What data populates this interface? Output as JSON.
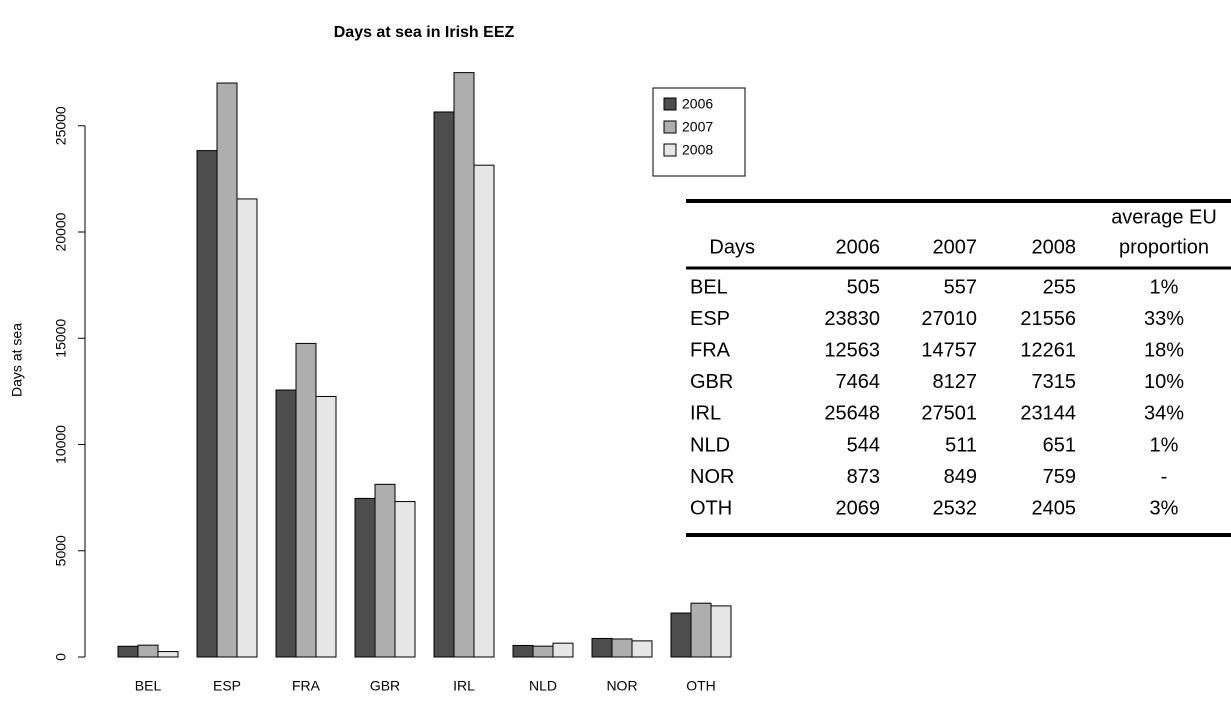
{
  "chart_data": {
    "type": "bar",
    "title": "Days at sea in Irish EEZ",
    "y_label": "Days at sea",
    "categories": [
      "BEL",
      "ESP",
      "FRA",
      "GBR",
      "IRL",
      "NLD",
      "NOR",
      "OTH"
    ],
    "series": [
      {
        "name": "2006",
        "color": "#4d4d4d",
        "values": [
          505,
          23830,
          12563,
          7464,
          25648,
          544,
          873,
          2069
        ]
      },
      {
        "name": "2007",
        "color": "#aeaeae",
        "values": [
          557,
          27010,
          14757,
          8127,
          27501,
          511,
          849,
          2532
        ]
      },
      {
        "name": "2008",
        "color": "#e6e6e6",
        "values": [
          255,
          21556,
          12261,
          7315,
          23144,
          651,
          759,
          2405
        ]
      }
    ],
    "ylim": [
      0,
      28000
    ],
    "yticks": [
      0,
      5000,
      10000,
      15000,
      20000,
      25000
    ],
    "grid": false,
    "legend": "top-right"
  },
  "table": {
    "row_header": "Days",
    "proportion_header": [
      "average EU",
      "proportion"
    ],
    "proportion": [
      "1%",
      "33%",
      "18%",
      "10%",
      "34%",
      "1%",
      "-",
      "3%"
    ]
  }
}
